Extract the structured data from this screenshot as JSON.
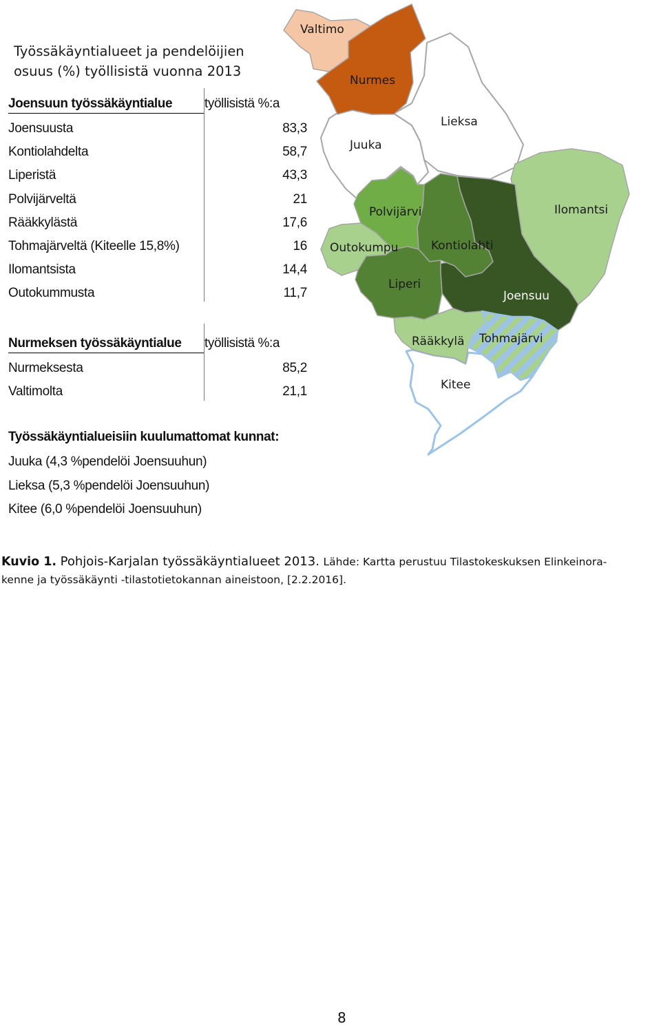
{
  "map_title": {
    "line1": "Työssäkäyntialueet ja pendelöijien",
    "line2": "osuus (%) työllisistä vuonna 2013"
  },
  "joensuu_table": {
    "header": "Joensuun työssäkäyntialue",
    "col_header": "työllisistä  %:a",
    "rows": [
      {
        "label": "Joensuusta",
        "value": "83,3"
      },
      {
        "label": "Kontiolahdelta",
        "value": "58,7"
      },
      {
        "label": "Liperistä",
        "value": "43,3"
      },
      {
        "label": "Polvijärveltä",
        "value": "21"
      },
      {
        "label": "Rääkkylästä",
        "value": "17,6"
      },
      {
        "label": "Tohmajärveltä  (Kiteelle  15,8%)",
        "value": "16"
      },
      {
        "label": "Ilomantsista",
        "value": "14,4"
      },
      {
        "label": "Outokummusta",
        "value": "11,7"
      }
    ]
  },
  "nurmes_table": {
    "header": "Nurmeksen työssäkäyntialue",
    "col_header": "työllisistä  %:a",
    "rows": [
      {
        "label": "Nurmeksesta",
        "value": "85,2"
      },
      {
        "label": "Valtimolta",
        "value": "21,1"
      }
    ]
  },
  "non_members": {
    "title": "Työssäkäyntialueisiin  kuulumattomat kunnat:",
    "rows": [
      "Juuka  (4,3  %pendelöi  Joensuuhun)",
      "Lieksa   (5,3  %pendelöi  Joensuuhun)",
      "Kitee   (6,0  %pendelöi  Joensuuhun)"
    ]
  },
  "map": {
    "colors": {
      "valtimo": "#f5c6a5",
      "nurmes": "#c55a11",
      "unassigned": "#ffffff",
      "joensuu": "#375623",
      "kontiolahti": "#548235",
      "liperi": "#548235",
      "polvijarvi": "#70ad47",
      "outokumpu": "#a9d18e",
      "ilomantsi": "#a9d18e",
      "raakkyla": "#a9d18e",
      "tohmajarvi_stripe_a": "#a9d18e",
      "tohmajarvi_stripe_b": "#9dc3e6",
      "border": "#a6a6a6",
      "kitee_border": "#9dc3e6"
    },
    "labels": {
      "valtimo": "Valtimo",
      "nurmes": "Nurmes",
      "lieksa": "Lieksa",
      "juuka": "Juuka",
      "polvijarvi": "Polvijärvi",
      "ilomantsi": "Ilomantsi",
      "outokumpu": "Outokumpu",
      "kontiolahti": "Kontiolahti",
      "liperi": "Liperi",
      "joensuu": "Joensuu",
      "raakkyla": "Rääkkylä",
      "tohmajarvi": "Tohmajärvi",
      "kitee": "Kitee"
    }
  },
  "caption": {
    "kuvio": "Kuvio 1.",
    "title": "Pohjois-Karjalan työssäkäyntialueet 2013.",
    "source_1": "Lähde: Kartta perustuu Tilastokeskuksen Elinkeinora-",
    "source_2": "kenne ja työssäkäynti -tilastotietokannan aineistoon, [2.2.2016]."
  },
  "page_number": "8"
}
